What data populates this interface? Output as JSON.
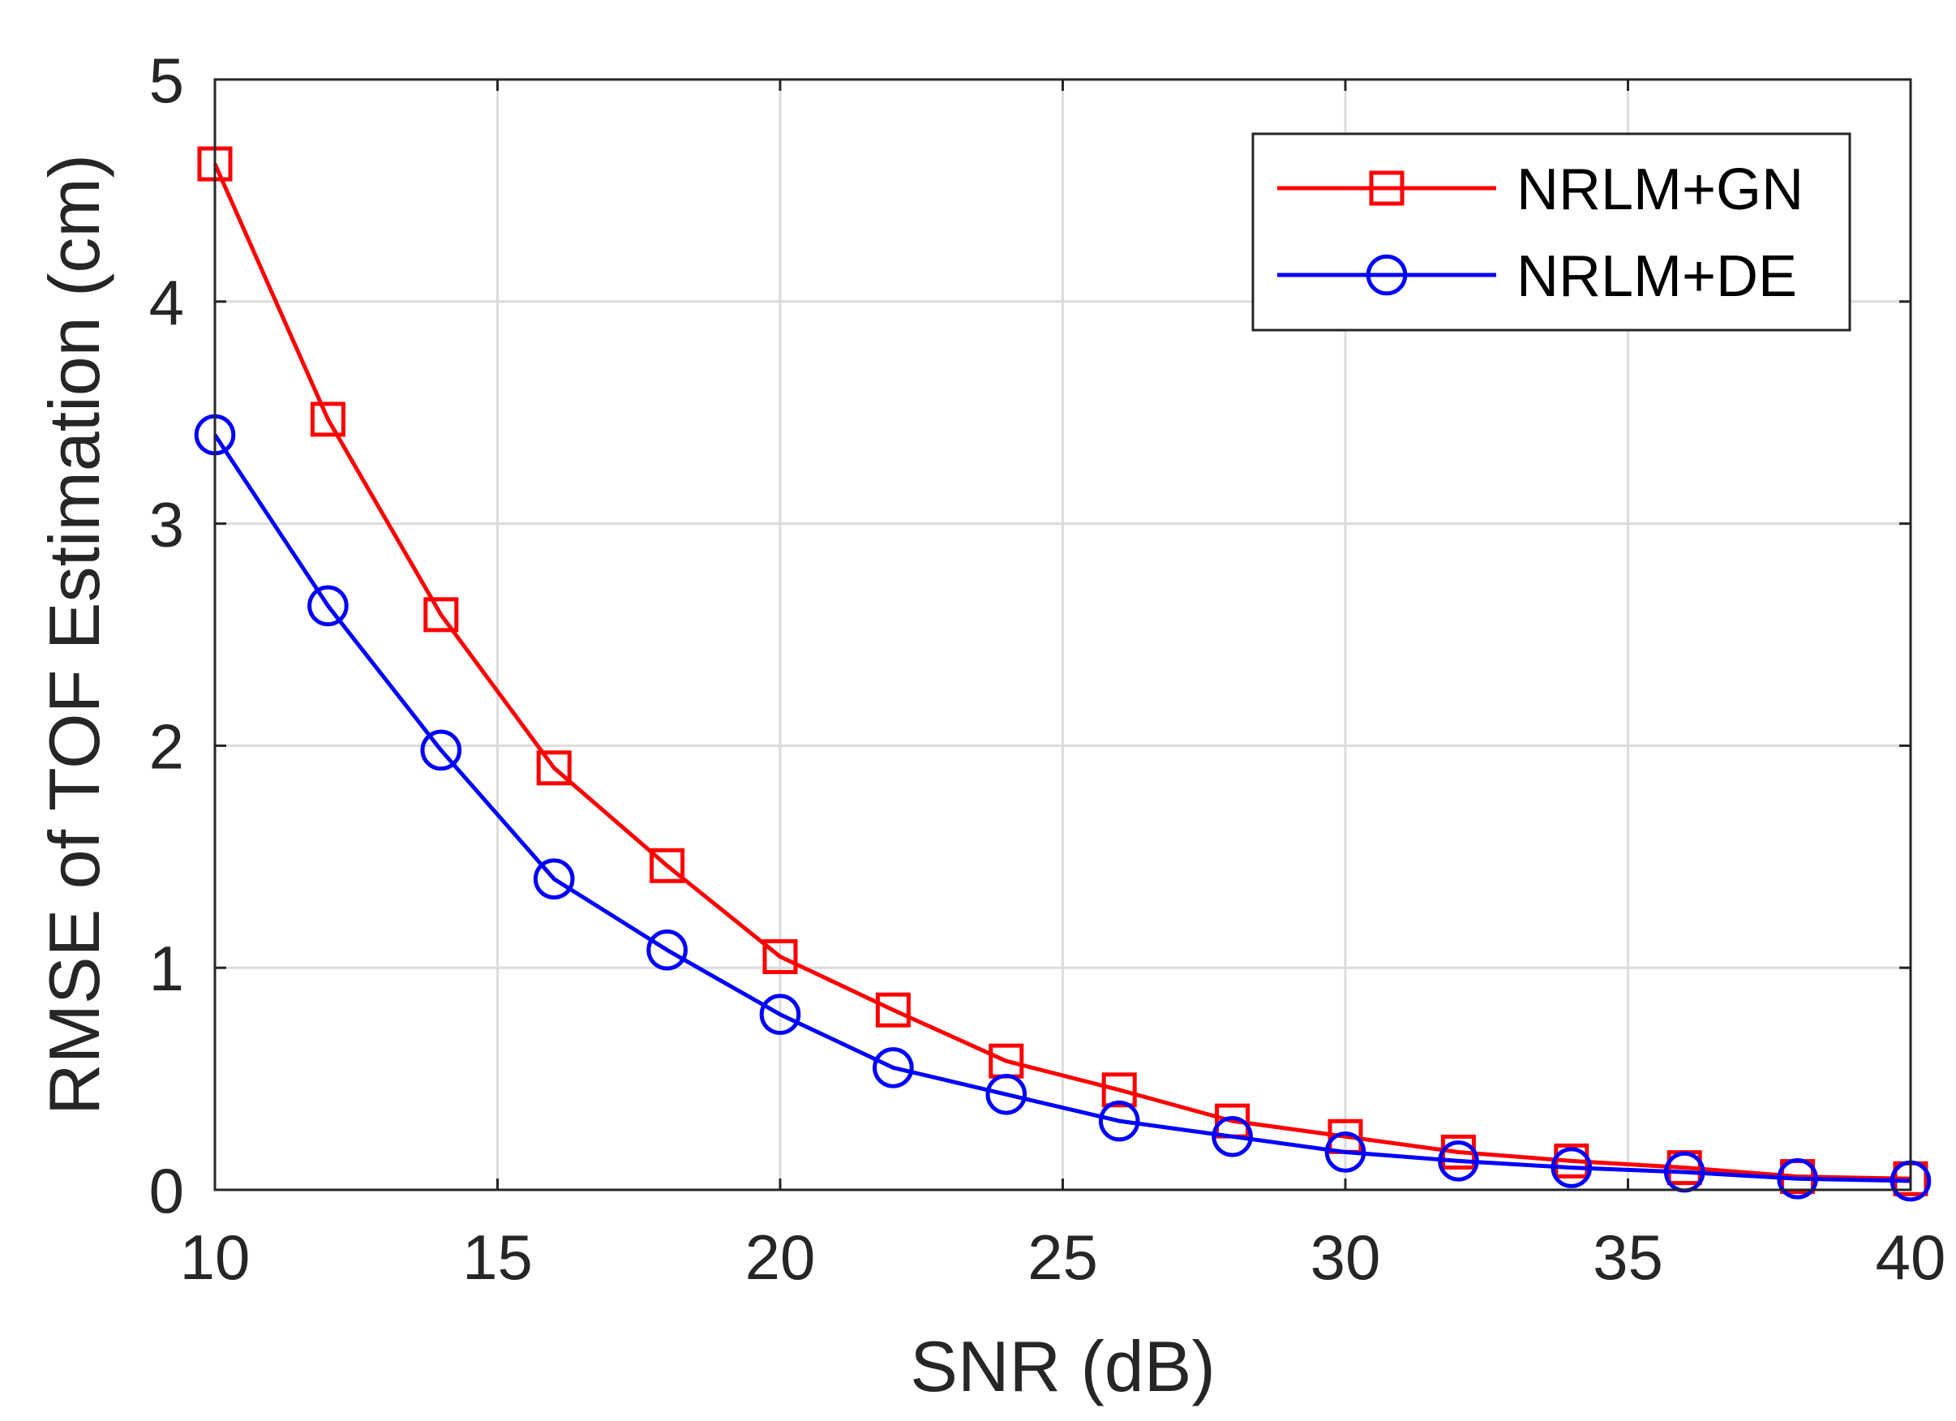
{
  "chart_data": {
    "type": "line",
    "title": "",
    "xlabel": "SNR (dB)",
    "ylabel": "RMSE of TOF Estimation (cm)",
    "xlim": [
      10,
      40
    ],
    "ylim": [
      0,
      5
    ],
    "xticks": [
      10,
      15,
      20,
      25,
      30,
      35,
      40
    ],
    "yticks": [
      0,
      1,
      2,
      3,
      4,
      5
    ],
    "xtick_labels": [
      "10",
      "15",
      "20",
      "25",
      "30",
      "35",
      "40"
    ],
    "ytick_labels": [
      "0",
      "1",
      "2",
      "3",
      "4",
      "5"
    ],
    "grid": true,
    "legend_position": "top-right",
    "x": [
      10,
      12,
      14,
      16,
      18,
      20,
      22,
      24,
      26,
      28,
      30,
      32,
      34,
      36,
      38,
      40
    ],
    "series": [
      {
        "name": "NRLM+GN",
        "color": "#ff0000",
        "marker": "square",
        "values": [
          4.62,
          3.47,
          2.59,
          1.9,
          1.46,
          1.05,
          0.81,
          0.58,
          0.45,
          0.31,
          0.24,
          0.17,
          0.13,
          0.1,
          0.06,
          0.05
        ]
      },
      {
        "name": "NRLM+DE",
        "color": "#0000ff",
        "marker": "circle",
        "values": [
          3.4,
          2.63,
          1.98,
          1.4,
          1.08,
          0.79,
          0.55,
          0.43,
          0.31,
          0.24,
          0.17,
          0.13,
          0.1,
          0.08,
          0.05,
          0.04
        ]
      }
    ]
  }
}
